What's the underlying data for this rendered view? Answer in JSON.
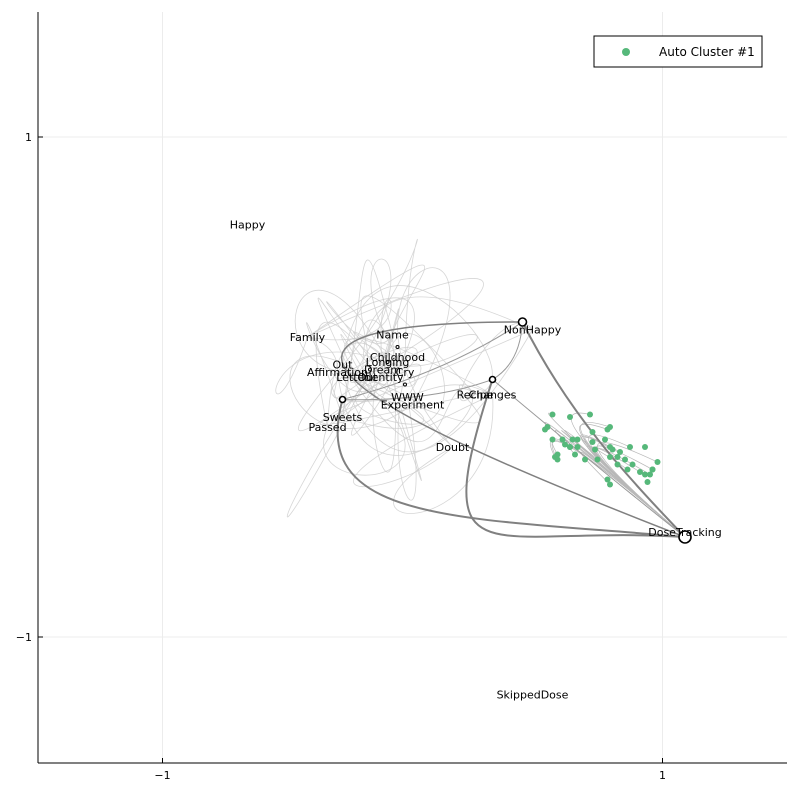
{
  "chart_data": {
    "type": "scatter",
    "subtype": "network-graph",
    "xlim": [
      -1.5,
      1.5
    ],
    "ylim": [
      -1.5,
      1.5
    ],
    "xticks": [
      {
        "value": -1,
        "label": "−1"
      },
      {
        "value": 1,
        "label": "1"
      }
    ],
    "yticks": [
      {
        "value": 1,
        "label": "1"
      },
      {
        "value": -1,
        "label": "−1"
      }
    ],
    "grid": true,
    "legend": {
      "position": "top-right",
      "entries": [
        {
          "label": "Auto Cluster #1",
          "color": "#56b87a"
        }
      ]
    },
    "colors": {
      "axis": "#000000",
      "grid": "#ececec",
      "edge_heavy": "#808080",
      "edge_light": "#cccccc",
      "cluster": "#56b87a"
    },
    "nodes": [
      {
        "label": "Happy",
        "x": -0.66,
        "y": 0.65
      },
      {
        "label": "Family",
        "x": -0.42,
        "y": 0.2
      },
      {
        "label": "Name",
        "x": -0.08,
        "y": 0.21
      },
      {
        "label": "Childhood",
        "x": -0.06,
        "y": 0.12
      },
      {
        "label": "Longing",
        "x": -0.1,
        "y": 0.1
      },
      {
        "label": "Out",
        "x": -0.28,
        "y": 0.09
      },
      {
        "label": "Dream",
        "x": -0.12,
        "y": 0.07
      },
      {
        "label": "Cry",
        "x": -0.03,
        "y": 0.06
      },
      {
        "label": "Affirmation",
        "x": -0.3,
        "y": 0.06
      },
      {
        "label": "Letter",
        "x": -0.24,
        "y": 0.04
      },
      {
        "label": "Out",
        "x": -0.18,
        "y": 0.04
      },
      {
        "label": "Identity",
        "x": -0.12,
        "y": 0.04
      },
      {
        "label": "NonHappy",
        "x": 0.48,
        "y": 0.23
      },
      {
        "label": "Recipe",
        "x": 0.25,
        "y": -0.03
      },
      {
        "label": "Changes",
        "x": 0.32,
        "y": -0.03
      },
      {
        "label": "WWW",
        "x": -0.02,
        "y": -0.04
      },
      {
        "label": "Experiment",
        "x": 0.0,
        "y": -0.07
      },
      {
        "label": "Sweets",
        "x": -0.28,
        "y": -0.12
      },
      {
        "label": "Passed",
        "x": -0.34,
        "y": -0.16
      },
      {
        "label": "Doubt",
        "x": 0.16,
        "y": -0.24
      },
      {
        "label": "DoseTracking",
        "x": 1.09,
        "y": -0.58
      },
      {
        "label": "SkippedDose",
        "x": 0.48,
        "y": -1.23
      }
    ],
    "hubs": [
      {
        "name": "NonHappy",
        "x": 0.44,
        "y": 0.26,
        "r": 4
      },
      {
        "name": "Changes",
        "x": 0.32,
        "y": 0.03,
        "r": 3
      },
      {
        "name": "Sweets",
        "x": -0.28,
        "y": -0.05,
        "r": 3
      },
      {
        "name": "DoseTracking",
        "x": 1.09,
        "y": -0.6,
        "r": 6
      },
      {
        "name": "Childhood",
        "x": -0.06,
        "y": 0.16,
        "r": 1.5
      },
      {
        "name": "Dream",
        "x": -0.1,
        "y": 0.1,
        "r": 1.5
      },
      {
        "name": "WWW",
        "x": -0.03,
        "y": 0.01,
        "r": 1.5
      },
      {
        "name": "Letter",
        "x": -0.17,
        "y": 0.07,
        "r": 1.5
      }
    ],
    "cluster_points": {
      "series": "Auto Cluster #1",
      "points": [
        [
          0.56,
          -0.11
        ],
        [
          0.63,
          -0.12
        ],
        [
          0.54,
          -0.16
        ],
        [
          0.53,
          -0.17
        ],
        [
          0.6,
          -0.21
        ],
        [
          0.61,
          -0.23
        ],
        [
          0.71,
          -0.11
        ],
        [
          0.72,
          -0.18
        ],
        [
          0.79,
          -0.16
        ],
        [
          0.66,
          -0.24
        ],
        [
          0.65,
          -0.27
        ],
        [
          0.69,
          -0.29
        ],
        [
          0.79,
          -0.24
        ],
        [
          0.85,
          -0.29
        ],
        [
          0.96,
          -0.33
        ],
        [
          0.94,
          -0.38
        ],
        [
          0.57,
          -0.28
        ],
        [
          0.63,
          -0.24
        ],
        [
          0.58,
          -0.27
        ],
        [
          0.77,
          -0.21
        ],
        [
          0.8,
          -0.25
        ],
        [
          0.82,
          -0.28
        ],
        [
          0.83,
          -0.26
        ],
        [
          0.88,
          -0.31
        ],
        [
          0.91,
          -0.34
        ],
        [
          0.93,
          -0.35
        ],
        [
          0.95,
          -0.35
        ],
        [
          0.96,
          -0.33
        ],
        [
          0.86,
          -0.33
        ],
        [
          0.79,
          -0.28
        ],
        [
          0.66,
          -0.21
        ],
        [
          0.73,
          -0.25
        ],
        [
          0.74,
          -0.29
        ],
        [
          0.78,
          -0.37
        ],
        [
          0.79,
          -0.39
        ],
        [
          0.82,
          -0.31
        ],
        [
          0.58,
          -0.29
        ],
        [
          0.63,
          -0.24
        ],
        [
          0.64,
          -0.21
        ],
        [
          0.56,
          -0.21
        ],
        [
          0.78,
          -0.17
        ],
        [
          0.72,
          -0.22
        ],
        [
          0.87,
          -0.24
        ],
        [
          0.93,
          -0.24
        ],
        [
          0.98,
          -0.3
        ]
      ]
    }
  }
}
